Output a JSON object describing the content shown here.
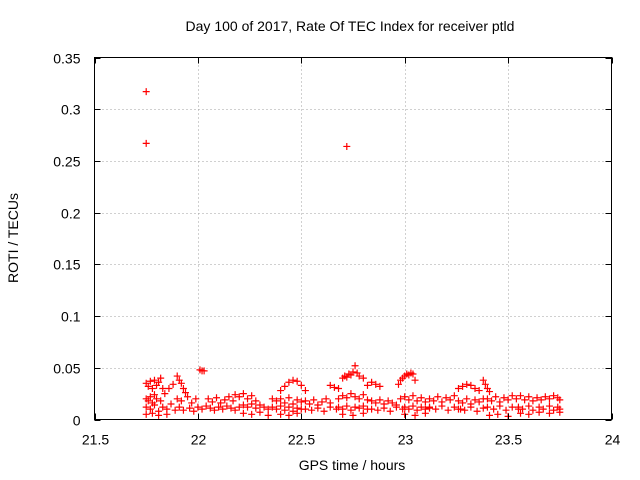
{
  "chart_data": {
    "type": "scatter",
    "title": "Day 100 of 2017, Rate Of TEC Index for receiver ptld",
    "xlabel": "GPS time / hours",
    "ylabel": "ROTI / TECUs",
    "xlim": [
      21.5,
      24
    ],
    "ylim": [
      0,
      0.35
    ],
    "x_ticks": [
      21.5,
      22,
      22.5,
      23,
      23.5,
      24
    ],
    "x_tick_labels": [
      "21.5",
      "22",
      "22.5",
      "23",
      "23.5",
      "24"
    ],
    "y_ticks": [
      0,
      0.05,
      0.1,
      0.15,
      0.2,
      0.25,
      0.3,
      0.35
    ],
    "y_tick_labels": [
      "0",
      "0.05",
      "0.1",
      "0.15",
      "0.2",
      "0.25",
      "0.3",
      "0.35"
    ],
    "grid": true,
    "marker": "+",
    "marker_color": "#ff0000",
    "series": [
      {
        "name": "ROTI",
        "points": [
          [
            21.75,
            0.317
          ],
          [
            21.75,
            0.267
          ],
          [
            22.72,
            0.264
          ],
          [
            21.75,
            0.035
          ],
          [
            21.76,
            0.032
          ],
          [
            21.77,
            0.037
          ],
          [
            21.78,
            0.03
          ],
          [
            21.79,
            0.038
          ],
          [
            21.8,
            0.033
          ],
          [
            21.81,
            0.036
          ],
          [
            21.82,
            0.04
          ],
          [
            21.83,
            0.03
          ],
          [
            21.75,
            0.02
          ],
          [
            21.76,
            0.018
          ],
          [
            21.77,
            0.022
          ],
          [
            21.78,
            0.016
          ],
          [
            21.79,
            0.024
          ],
          [
            21.8,
            0.02
          ],
          [
            21.82,
            0.018
          ],
          [
            21.84,
            0.025
          ],
          [
            21.75,
            0.012
          ],
          [
            21.77,
            0.01
          ],
          [
            21.79,
            0.014
          ],
          [
            21.81,
            0.008
          ],
          [
            21.83,
            0.012
          ],
          [
            21.85,
            0.01
          ],
          [
            21.87,
            0.015
          ],
          [
            21.89,
            0.009
          ],
          [
            21.75,
            0.005
          ],
          [
            21.78,
            0.006
          ],
          [
            21.81,
            0.004
          ],
          [
            21.85,
            0.005
          ],
          [
            21.86,
            0.03
          ],
          [
            21.88,
            0.034
          ],
          [
            21.9,
            0.042
          ],
          [
            21.91,
            0.038
          ],
          [
            21.92,
            0.035
          ],
          [
            21.93,
            0.03
          ],
          [
            21.94,
            0.026
          ],
          [
            21.9,
            0.02
          ],
          [
            21.92,
            0.018
          ],
          [
            21.95,
            0.022
          ],
          [
            21.97,
            0.016
          ],
          [
            21.99,
            0.02
          ],
          [
            21.91,
            0.012
          ],
          [
            21.93,
            0.009
          ],
          [
            21.96,
            0.011
          ],
          [
            21.98,
            0.008
          ],
          [
            22.0,
            0.012
          ],
          [
            22.02,
            0.01
          ],
          [
            22.04,
            0.013
          ],
          [
            22.01,
            0.048
          ],
          [
            22.02,
            0.047
          ],
          [
            22.03,
            0.047
          ],
          [
            22.05,
            0.02
          ],
          [
            22.07,
            0.017
          ],
          [
            22.09,
            0.021
          ],
          [
            22.11,
            0.016
          ],
          [
            22.13,
            0.019
          ],
          [
            22.15,
            0.022
          ],
          [
            22.17,
            0.018
          ],
          [
            22.06,
            0.011
          ],
          [
            22.08,
            0.009
          ],
          [
            22.1,
            0.012
          ],
          [
            22.12,
            0.01
          ],
          [
            22.14,
            0.013
          ],
          [
            22.16,
            0.011
          ],
          [
            22.18,
            0.009
          ],
          [
            22.2,
            0.012
          ],
          [
            22.18,
            0.024
          ],
          [
            22.2,
            0.022
          ],
          [
            22.22,
            0.025
          ],
          [
            22.24,
            0.02
          ],
          [
            22.26,
            0.023
          ],
          [
            22.28,
            0.018
          ],
          [
            22.22,
            0.014
          ],
          [
            22.24,
            0.012
          ],
          [
            22.26,
            0.015
          ],
          [
            22.28,
            0.011
          ],
          [
            22.3,
            0.014
          ],
          [
            22.32,
            0.012
          ],
          [
            22.34,
            0.01
          ],
          [
            22.22,
            0.006
          ],
          [
            22.26,
            0.005
          ],
          [
            22.3,
            0.007
          ],
          [
            22.34,
            0.004
          ],
          [
            22.4,
            0.028
          ],
          [
            22.42,
            0.032
          ],
          [
            22.44,
            0.036
          ],
          [
            22.46,
            0.038
          ],
          [
            22.48,
            0.037
          ],
          [
            22.5,
            0.033
          ],
          [
            22.52,
            0.028
          ],
          [
            22.36,
            0.02
          ],
          [
            22.38,
            0.018
          ],
          [
            22.4,
            0.02
          ],
          [
            22.42,
            0.016
          ],
          [
            22.44,
            0.021
          ],
          [
            22.46,
            0.015
          ],
          [
            22.48,
            0.019
          ],
          [
            22.5,
            0.017
          ],
          [
            22.36,
            0.012
          ],
          [
            22.38,
            0.01
          ],
          [
            22.4,
            0.013
          ],
          [
            22.42,
            0.009
          ],
          [
            22.44,
            0.012
          ],
          [
            22.46,
            0.008
          ],
          [
            22.48,
            0.011
          ],
          [
            22.5,
            0.01
          ],
          [
            22.4,
            0.005
          ],
          [
            22.44,
            0.004
          ],
          [
            22.48,
            0.006
          ],
          [
            22.52,
            0.018
          ],
          [
            22.54,
            0.015
          ],
          [
            22.56,
            0.019
          ],
          [
            22.58,
            0.014
          ],
          [
            22.6,
            0.017
          ],
          [
            22.62,
            0.02
          ],
          [
            22.64,
            0.016
          ],
          [
            22.52,
            0.01
          ],
          [
            22.55,
            0.009
          ],
          [
            22.58,
            0.011
          ],
          [
            22.61,
            0.008
          ],
          [
            22.64,
            0.012
          ],
          [
            22.67,
            0.01
          ],
          [
            22.64,
            0.033
          ],
          [
            22.66,
            0.031
          ],
          [
            22.68,
            0.03
          ],
          [
            22.7,
            0.04
          ],
          [
            22.71,
            0.042
          ],
          [
            22.72,
            0.041
          ],
          [
            22.73,
            0.044
          ],
          [
            22.74,
            0.043
          ],
          [
            22.75,
            0.046
          ],
          [
            22.76,
            0.052
          ],
          [
            22.77,
            0.045
          ],
          [
            22.78,
            0.042
          ],
          [
            22.8,
            0.04
          ],
          [
            22.68,
            0.02
          ],
          [
            22.7,
            0.023
          ],
          [
            22.72,
            0.021
          ],
          [
            22.74,
            0.025
          ],
          [
            22.76,
            0.022
          ],
          [
            22.78,
            0.02
          ],
          [
            22.8,
            0.024
          ],
          [
            22.82,
            0.019
          ],
          [
            22.68,
            0.012
          ],
          [
            22.7,
            0.01
          ],
          [
            22.72,
            0.013
          ],
          [
            22.74,
            0.009
          ],
          [
            22.76,
            0.012
          ],
          [
            22.78,
            0.011
          ],
          [
            22.8,
            0.013
          ],
          [
            22.82,
            0.01
          ],
          [
            22.7,
            0.005
          ],
          [
            22.75,
            0.004
          ],
          [
            22.8,
            0.006
          ],
          [
            22.82,
            0.033
          ],
          [
            22.84,
            0.036
          ],
          [
            22.86,
            0.034
          ],
          [
            22.88,
            0.032
          ],
          [
            22.84,
            0.018
          ],
          [
            22.86,
            0.016
          ],
          [
            22.88,
            0.019
          ],
          [
            22.9,
            0.015
          ],
          [
            22.92,
            0.018
          ],
          [
            22.94,
            0.016
          ],
          [
            22.96,
            0.014
          ],
          [
            22.84,
            0.01
          ],
          [
            22.87,
            0.009
          ],
          [
            22.9,
            0.011
          ],
          [
            22.93,
            0.008
          ],
          [
            22.96,
            0.012
          ],
          [
            22.99,
            0.01
          ],
          [
            22.97,
            0.034
          ],
          [
            22.98,
            0.038
          ],
          [
            22.99,
            0.04
          ],
          [
            23.0,
            0.042
          ],
          [
            23.01,
            0.044
          ],
          [
            23.02,
            0.043
          ],
          [
            23.03,
            0.045
          ],
          [
            23.04,
            0.044
          ],
          [
            23.05,
            0.038
          ],
          [
            22.98,
            0.02
          ],
          [
            23.0,
            0.022
          ],
          [
            23.02,
            0.019
          ],
          [
            23.04,
            0.023
          ],
          [
            23.06,
            0.018
          ],
          [
            23.08,
            0.021
          ],
          [
            23.1,
            0.017
          ],
          [
            23.0,
            0.012
          ],
          [
            23.02,
            0.01
          ],
          [
            23.04,
            0.013
          ],
          [
            23.06,
            0.009
          ],
          [
            23.08,
            0.012
          ],
          [
            23.1,
            0.01
          ],
          [
            23.12,
            0.011
          ],
          [
            23.0,
            0.005
          ],
          [
            23.05,
            0.004
          ],
          [
            23.1,
            0.006
          ],
          [
            23.12,
            0.02
          ],
          [
            23.14,
            0.018
          ],
          [
            23.16,
            0.022
          ],
          [
            23.18,
            0.017
          ],
          [
            23.2,
            0.021
          ],
          [
            23.22,
            0.019
          ],
          [
            23.24,
            0.023
          ],
          [
            23.12,
            0.012
          ],
          [
            23.15,
            0.01
          ],
          [
            23.18,
            0.013
          ],
          [
            23.21,
            0.009
          ],
          [
            23.24,
            0.012
          ],
          [
            23.27,
            0.01
          ],
          [
            23.26,
            0.03
          ],
          [
            23.28,
            0.032
          ],
          [
            23.3,
            0.034
          ],
          [
            23.32,
            0.033
          ],
          [
            23.34,
            0.03
          ],
          [
            23.36,
            0.028
          ],
          [
            23.26,
            0.018
          ],
          [
            23.28,
            0.016
          ],
          [
            23.3,
            0.02
          ],
          [
            23.32,
            0.015
          ],
          [
            23.34,
            0.019
          ],
          [
            23.36,
            0.017
          ],
          [
            23.38,
            0.02
          ],
          [
            23.26,
            0.01
          ],
          [
            23.29,
            0.009
          ],
          [
            23.32,
            0.012
          ],
          [
            23.35,
            0.008
          ],
          [
            23.38,
            0.011
          ],
          [
            23.38,
            0.038
          ],
          [
            23.39,
            0.034
          ],
          [
            23.4,
            0.03
          ],
          [
            23.41,
            0.027
          ],
          [
            23.4,
            0.02
          ],
          [
            23.42,
            0.018
          ],
          [
            23.44,
            0.022
          ],
          [
            23.46,
            0.017
          ],
          [
            23.48,
            0.021
          ],
          [
            23.5,
            0.019
          ],
          [
            23.52,
            0.023
          ],
          [
            23.4,
            0.012
          ],
          [
            23.43,
            0.01
          ],
          [
            23.46,
            0.013
          ],
          [
            23.49,
            0.009
          ],
          [
            23.52,
            0.012
          ],
          [
            23.55,
            0.01
          ],
          [
            23.41,
            0.004
          ],
          [
            23.45,
            0.005
          ],
          [
            23.5,
            0.003
          ],
          [
            23.54,
            0.02
          ],
          [
            23.56,
            0.023
          ],
          [
            23.58,
            0.019
          ],
          [
            23.6,
            0.022
          ],
          [
            23.62,
            0.018
          ],
          [
            23.64,
            0.021
          ],
          [
            23.66,
            0.019
          ],
          [
            23.68,
            0.022
          ],
          [
            23.7,
            0.02
          ],
          [
            23.72,
            0.023
          ],
          [
            23.74,
            0.021
          ],
          [
            23.75,
            0.019
          ],
          [
            23.55,
            0.012
          ],
          [
            23.57,
            0.01
          ],
          [
            23.6,
            0.013
          ],
          [
            23.62,
            0.009
          ],
          [
            23.65,
            0.012
          ],
          [
            23.67,
            0.01
          ],
          [
            23.7,
            0.013
          ],
          [
            23.72,
            0.009
          ],
          [
            23.74,
            0.012
          ],
          [
            23.75,
            0.01
          ],
          [
            23.56,
            0.006
          ],
          [
            23.6,
            0.005
          ],
          [
            23.65,
            0.007
          ],
          [
            23.7,
            0.006
          ],
          [
            23.75,
            0.007
          ]
        ]
      }
    ]
  }
}
